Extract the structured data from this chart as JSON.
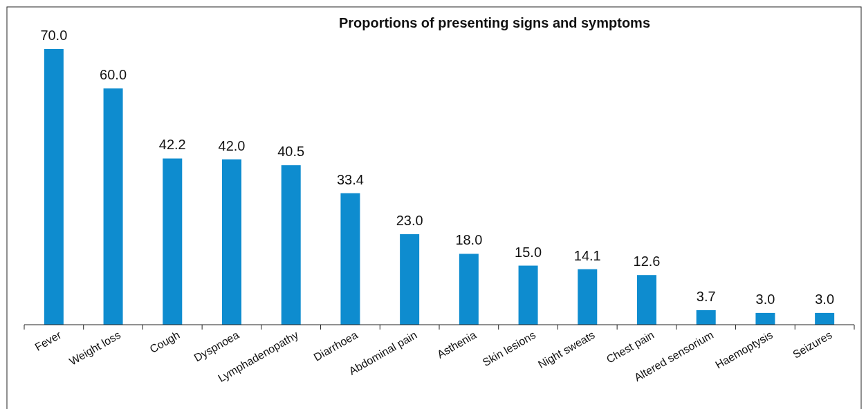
{
  "chart_data": {
    "type": "bar",
    "title": "Proportions of presenting signs and symptoms",
    "categories": [
      "Fever",
      "Weight loss",
      "Cough",
      "Dyspnoea",
      "Lymphadenopathy",
      "Diarrhoea",
      "Abdominal pain",
      "Asthenia",
      "Skin lesions",
      "Night sweats",
      "Chest pain",
      "Altered sensorium",
      "Haemoptysis",
      "Seizures"
    ],
    "values": [
      70.0,
      60.0,
      42.2,
      42.0,
      40.5,
      33.4,
      23.0,
      18.0,
      15.0,
      14.1,
      12.6,
      3.7,
      3.0,
      3.0
    ],
    "value_labels": [
      "70.0",
      "60.0",
      "42.2",
      "42.0",
      "40.5",
      "33.4",
      "23.0",
      "18.0",
      "15.0",
      "14.1",
      "12.6",
      "3.7",
      "3.0",
      "3.0"
    ],
    "color": "#0e8ccf"
  }
}
